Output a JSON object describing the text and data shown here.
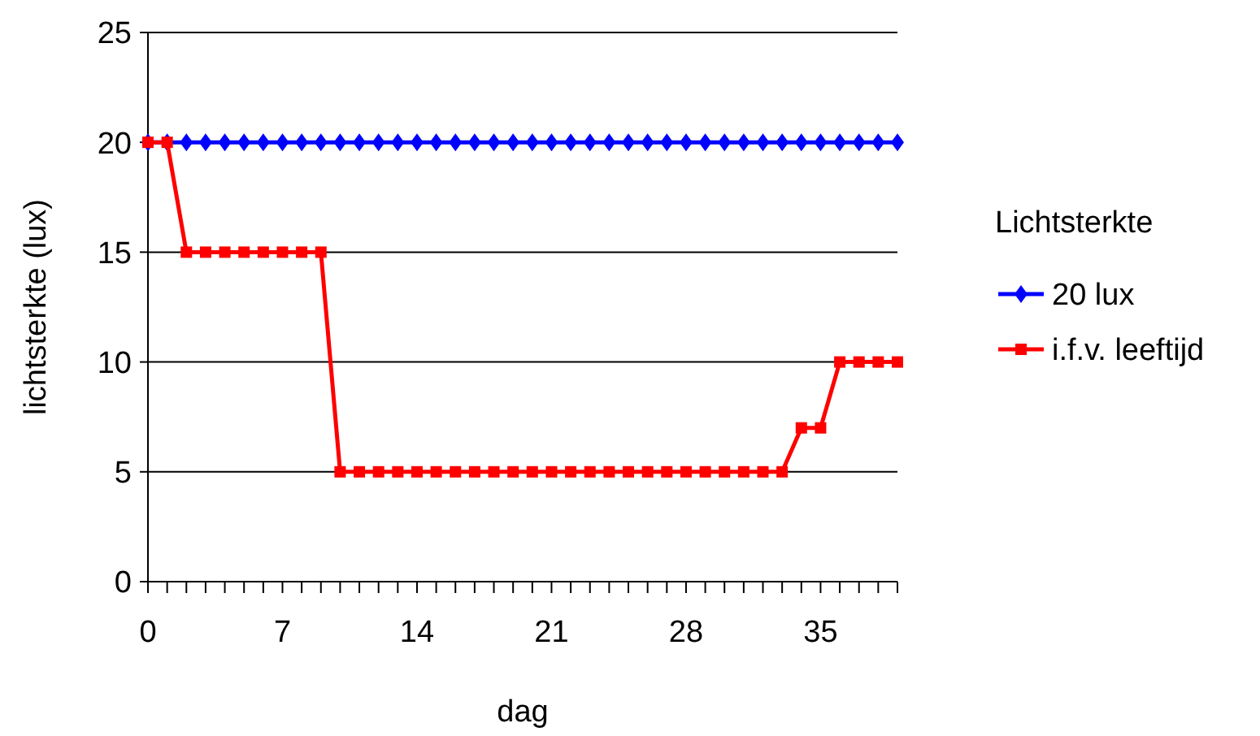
{
  "chart_data": {
    "type": "line",
    "xlabel": "dag",
    "ylabel": "lichtsterkte (lux)",
    "legend_title": "Lichtsterkte",
    "categories": [
      "0",
      null,
      null,
      null,
      null,
      null,
      null,
      "7",
      null,
      null,
      null,
      null,
      null,
      null,
      "14",
      null,
      null,
      null,
      null,
      null,
      null,
      "21",
      null,
      null,
      null,
      null,
      null,
      null,
      "28",
      null,
      null,
      null,
      null,
      null,
      null,
      "35",
      null,
      null,
      null,
      null
    ],
    "series": [
      {
        "name": "20 lux",
        "color": "#0000ff",
        "marker": "diamond",
        "values": [
          20,
          20,
          20,
          20,
          20,
          20,
          20,
          20,
          20,
          20,
          20,
          20,
          20,
          20,
          20,
          20,
          20,
          20,
          20,
          20,
          20,
          20,
          20,
          20,
          20,
          20,
          20,
          20,
          20,
          20,
          20,
          20,
          20,
          20,
          20,
          20,
          20,
          20,
          20,
          20
        ]
      },
      {
        "name": "i.f.v. leeftijd",
        "color": "#ff0000",
        "marker": "square",
        "values": [
          20,
          20,
          15,
          15,
          15,
          15,
          15,
          15,
          15,
          15,
          5,
          5,
          5,
          5,
          5,
          5,
          5,
          5,
          5,
          5,
          5,
          5,
          5,
          5,
          5,
          5,
          5,
          5,
          5,
          5,
          5,
          5,
          5,
          5,
          7,
          7,
          10,
          10,
          10,
          10
        ]
      }
    ],
    "ylim": [
      0,
      25
    ],
    "yticks": [
      0,
      5,
      10,
      15,
      20,
      25
    ],
    "grid": "y",
    "legend": "right",
    "line_style": "solid"
  }
}
